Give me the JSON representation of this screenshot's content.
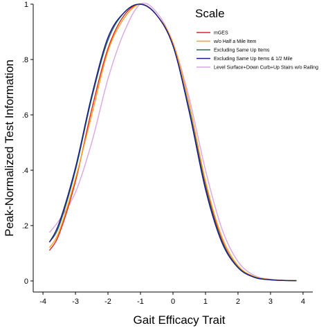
{
  "chart_data": {
    "type": "line",
    "xlabel": "Gait Efficacy Trait",
    "ylabel": "Peak-Normalized Test Information",
    "xlim": [
      -4.3,
      4.3
    ],
    "ylim": [
      -0.02,
      1.0
    ],
    "x_ticks": [
      -4,
      -3,
      -2,
      -1,
      0,
      1,
      2,
      3,
      4
    ],
    "x_tick_labels": [
      "-4",
      "-3",
      "-2",
      "-1",
      "0",
      "1",
      "2",
      "3",
      "4"
    ],
    "y_ticks": [
      0,
      0.2,
      0.4,
      0.6,
      0.8,
      1.0
    ],
    "y_tick_labels": [
      "0",
      ".2",
      ".4",
      ".6",
      ".8",
      "1"
    ],
    "grid": false,
    "legend": {
      "title": "Scale",
      "placement": "top-right"
    },
    "series": [
      {
        "name": "mGES",
        "color": "#d62728",
        "x": [
          -3.8,
          -3.5,
          -3.0,
          -2.5,
          -2.0,
          -1.5,
          -1.0,
          -0.5,
          0.0,
          0.5,
          1.0,
          1.5,
          2.0,
          2.5,
          3.0,
          3.5,
          3.8
        ],
        "y": [
          0.11,
          0.17,
          0.36,
          0.62,
          0.84,
          0.96,
          1.0,
          0.96,
          0.85,
          0.62,
          0.35,
          0.15,
          0.05,
          0.015,
          0.005,
          0.002,
          0.001
        ]
      },
      {
        "name": "w/o Half a Mile Item",
        "color": "#ff9e1b",
        "x": [
          -3.8,
          -3.5,
          -3.0,
          -2.5,
          -2.0,
          -1.5,
          -1.0,
          -0.5,
          0.0,
          0.5,
          1.0,
          1.5,
          2.0,
          2.5,
          3.0,
          3.5,
          3.8
        ],
        "y": [
          0.12,
          0.18,
          0.37,
          0.6,
          0.83,
          0.95,
          1.0,
          0.96,
          0.86,
          0.64,
          0.36,
          0.16,
          0.055,
          0.016,
          0.005,
          0.002,
          0.001
        ]
      },
      {
        "name": "Excluding Same Up Items",
        "color": "#2e6b4f",
        "x": [
          -3.8,
          -3.5,
          -3.0,
          -2.5,
          -2.0,
          -1.5,
          -1.0,
          -0.5,
          0.0,
          0.5,
          1.0,
          1.5,
          2.0,
          2.5,
          3.0,
          3.5,
          3.8
        ],
        "y": [
          0.14,
          0.2,
          0.4,
          0.66,
          0.87,
          0.97,
          1.0,
          0.96,
          0.85,
          0.62,
          0.34,
          0.145,
          0.05,
          0.014,
          0.004,
          0.0015,
          0.001
        ]
      },
      {
        "name": "Excluding Same Up Items & 1/2 Mile",
        "color": "#1a1a8c",
        "x": [
          -3.8,
          -3.5,
          -3.0,
          -2.5,
          -2.0,
          -1.5,
          -1.0,
          -0.5,
          0.0,
          0.5,
          1.0,
          1.5,
          2.0,
          2.5,
          3.0,
          3.5,
          3.8
        ],
        "y": [
          0.14,
          0.21,
          0.41,
          0.67,
          0.88,
          0.97,
          1.0,
          0.96,
          0.85,
          0.61,
          0.33,
          0.14,
          0.048,
          0.013,
          0.004,
          0.0015,
          0.001
        ]
      },
      {
        "name": "Level Surface+Down Curb+Up Stairs w/o Railing",
        "color": "#d9a6e0",
        "x": [
          -3.8,
          -3.5,
          -3.0,
          -2.5,
          -2.0,
          -1.5,
          -1.0,
          -0.5,
          0.0,
          0.5,
          1.0,
          1.5,
          2.0,
          2.5,
          3.0,
          3.5,
          3.8
        ],
        "y": [
          0.175,
          0.22,
          0.32,
          0.5,
          0.73,
          0.9,
          1.0,
          0.97,
          0.86,
          0.66,
          0.4,
          0.19,
          0.07,
          0.02,
          0.006,
          0.002,
          0.001
        ]
      }
    ]
  }
}
